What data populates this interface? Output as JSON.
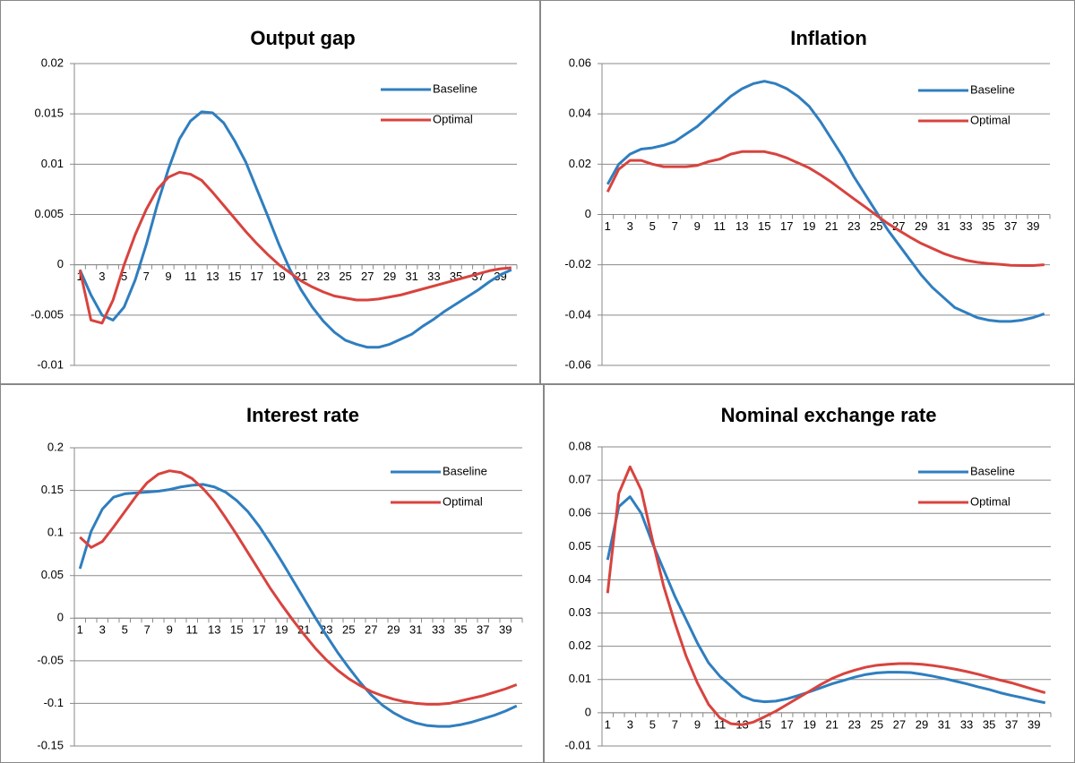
{
  "chart_data": [
    {
      "type": "line",
      "title": "Output gap",
      "categories": [
        1,
        null,
        3,
        null,
        5,
        null,
        7,
        null,
        9,
        null,
        11,
        null,
        13,
        null,
        15,
        null,
        17,
        null,
        19,
        null,
        21,
        null,
        23,
        null,
        25,
        null,
        27,
        null,
        29,
        null,
        31,
        null,
        33,
        null,
        35,
        null,
        37,
        null,
        39,
        null
      ],
      "series": [
        {
          "name": "Baseline",
          "color": "#2f7ebf",
          "values": [
            -0.0005,
            -0.003,
            -0.005,
            -0.0055,
            -0.0042,
            -0.0015,
            0.002,
            0.006,
            0.0095,
            0.0125,
            0.0143,
            0.0152,
            0.0151,
            0.0141,
            0.0123,
            0.0102,
            0.0075,
            0.0048,
            0.002,
            -0.0005,
            -0.0025,
            -0.0042,
            -0.0056,
            -0.0067,
            -0.0075,
            -0.0079,
            -0.0082,
            -0.0082,
            -0.0079,
            -0.0074,
            -0.0069,
            -0.0061,
            -0.0054,
            -0.0046,
            -0.0039,
            -0.0032,
            -0.0025,
            -0.0017,
            -0.001,
            -0.0005
          ]
        },
        {
          "name": "Optimal",
          "color": "#d8433e",
          "values": [
            -0.0005,
            -0.0055,
            -0.0058,
            -0.0035,
            0,
            0.003,
            0.0055,
            0.0075,
            0.0087,
            0.0092,
            0.009,
            0.0084,
            0.0072,
            0.0059,
            0.0046,
            0.0033,
            0.0021,
            0.001,
            0,
            -0.0008,
            -0.0016,
            -0.0022,
            -0.0027,
            -0.0031,
            -0.0033,
            -0.0035,
            -0.0035,
            -0.0034,
            -0.0032,
            -0.003,
            -0.0027,
            -0.0024,
            -0.0021,
            -0.0018,
            -0.0015,
            -0.0012,
            -0.0009,
            -0.0006,
            -0.0004,
            -0.0003
          ]
        }
      ],
      "ylim": [
        -0.01,
        0.02
      ],
      "yticks": [
        -0.01,
        -0.005,
        0,
        0.005,
        0.01,
        0.015,
        0.02
      ],
      "grid": true,
      "legend": "upper right"
    },
    {
      "type": "line",
      "title": "Inflation",
      "categories": [
        1,
        null,
        3,
        null,
        5,
        null,
        7,
        null,
        9,
        null,
        11,
        null,
        13,
        null,
        15,
        null,
        17,
        null,
        19,
        null,
        21,
        null,
        23,
        null,
        25,
        null,
        27,
        null,
        29,
        null,
        31,
        null,
        33,
        null,
        35,
        null,
        37,
        null,
        39,
        null
      ],
      "series": [
        {
          "name": "Baseline",
          "color": "#2f7ebf",
          "values": [
            0.012,
            0.02,
            0.024,
            0.026,
            0.0265,
            0.0275,
            0.029,
            0.032,
            0.035,
            0.039,
            0.043,
            0.047,
            0.05,
            0.052,
            0.053,
            0.052,
            0.05,
            0.047,
            0.043,
            0.037,
            0.03,
            0.023,
            0.015,
            0.008,
            0.001,
            -0.006,
            -0.012,
            -0.018,
            -0.024,
            -0.029,
            -0.033,
            -0.037,
            -0.039,
            -0.041,
            -0.042,
            -0.0425,
            -0.0425,
            -0.042,
            -0.041,
            -0.0395
          ]
        },
        {
          "name": "Optimal",
          "color": "#d8433e",
          "values": [
            0.009,
            0.018,
            0.0215,
            0.0215,
            0.02,
            0.019,
            0.019,
            0.019,
            0.0195,
            0.021,
            0.022,
            0.024,
            0.025,
            0.025,
            0.025,
            0.024,
            0.0225,
            0.0205,
            0.0185,
            0.0158,
            0.0128,
            0.0095,
            0.0062,
            0.003,
            -0.0003,
            -0.0035,
            -0.0063,
            -0.009,
            -0.0115,
            -0.0135,
            -0.0155,
            -0.017,
            -0.0182,
            -0.019,
            -0.0195,
            -0.0198,
            -0.0202,
            -0.0203,
            -0.0203,
            -0.02
          ]
        }
      ],
      "ylim": [
        -0.06,
        0.06
      ],
      "yticks": [
        -0.06,
        -0.04,
        -0.02,
        0,
        0.02,
        0.04,
        0.06
      ],
      "grid": true,
      "legend": "upper right"
    },
    {
      "type": "line",
      "title": "Interest rate",
      "categories": [
        1,
        null,
        3,
        null,
        5,
        null,
        7,
        null,
        9,
        null,
        11,
        null,
        13,
        null,
        15,
        null,
        17,
        null,
        19,
        null,
        21,
        null,
        23,
        null,
        25,
        null,
        27,
        null,
        29,
        null,
        31,
        null,
        33,
        null,
        35,
        null,
        37,
        null,
        39,
        null
      ],
      "series": [
        {
          "name": "Baseline",
          "color": "#2f7ebf",
          "values": [
            0.058,
            0.102,
            0.128,
            0.142,
            0.146,
            0.147,
            0.148,
            0.149,
            0.151,
            0.154,
            0.156,
            0.157,
            0.154,
            0.148,
            0.138,
            0.125,
            0.108,
            0.088,
            0.067,
            0.045,
            0.023,
            0.001,
            -0.02,
            -0.04,
            -0.058,
            -0.075,
            -0.09,
            -0.102,
            -0.111,
            -0.118,
            -0.123,
            -0.126,
            -0.127,
            -0.127,
            -0.125,
            -0.122,
            -0.118,
            -0.114,
            -0.109,
            -0.103
          ]
        },
        {
          "name": "Optimal",
          "color": "#d8433e",
          "values": [
            0.095,
            0.083,
            0.09,
            0.107,
            0.125,
            0.143,
            0.159,
            0.169,
            0.173,
            0.171,
            0.164,
            0.152,
            0.137,
            0.118,
            0.098,
            0.077,
            0.056,
            0.035,
            0.016,
            -0.002,
            -0.019,
            -0.035,
            -0.049,
            -0.061,
            -0.071,
            -0.079,
            -0.086,
            -0.091,
            -0.095,
            -0.098,
            -0.1,
            -0.101,
            -0.101,
            -0.1,
            -0.097,
            -0.094,
            -0.091,
            -0.087,
            -0.083,
            -0.078
          ]
        }
      ],
      "ylim": [
        -0.15,
        0.2
      ],
      "yticks": [
        -0.15,
        -0.1,
        -0.05,
        0,
        0.05,
        0.1,
        0.15,
        0.2
      ],
      "grid": true,
      "legend": "upper right"
    },
    {
      "type": "line",
      "title": "Nominal exchange rate",
      "categories": [
        1,
        null,
        3,
        null,
        5,
        null,
        7,
        null,
        9,
        null,
        11,
        null,
        13,
        null,
        15,
        null,
        17,
        null,
        19,
        null,
        21,
        null,
        23,
        null,
        25,
        null,
        27,
        null,
        29,
        null,
        31,
        null,
        33,
        null,
        35,
        null,
        37,
        null,
        39,
        null
      ],
      "series": [
        {
          "name": "Baseline",
          "color": "#2f7ebf",
          "values": [
            0.046,
            0.062,
            0.065,
            0.06,
            0.051,
            0.043,
            0.035,
            0.028,
            0.021,
            0.015,
            0.011,
            0.008,
            0.005,
            0.0037,
            0.0033,
            0.0035,
            0.0042,
            0.0052,
            0.0063,
            0.0075,
            0.0087,
            0.0097,
            0.0107,
            0.0115,
            0.012,
            0.0122,
            0.0122,
            0.0121,
            0.0116,
            0.011,
            0.0103,
            0.0095,
            0.0087,
            0.0078,
            0.007,
            0.006,
            0.0052,
            0.0045,
            0.0037,
            0.003
          ]
        },
        {
          "name": "Optimal",
          "color": "#d8433e",
          "values": [
            0.036,
            0.066,
            0.074,
            0.067,
            0.052,
            0.038,
            0.027,
            0.017,
            0.009,
            0.0025,
            -0.0015,
            -0.0033,
            -0.0036,
            -0.0028,
            -0.0012,
            0.0005,
            0.0025,
            0.0045,
            0.0065,
            0.0085,
            0.0103,
            0.0117,
            0.0128,
            0.0137,
            0.0143,
            0.0146,
            0.0148,
            0.0148,
            0.0146,
            0.0142,
            0.0137,
            0.0131,
            0.0124,
            0.0116,
            0.0107,
            0.0098,
            0.009,
            0.008,
            0.007,
            0.006
          ]
        }
      ],
      "ylim": [
        -0.01,
        0.08
      ],
      "yticks": [
        -0.01,
        0,
        0.01,
        0.02,
        0.03,
        0.04,
        0.05,
        0.06,
        0.07,
        0.08
      ],
      "grid": true,
      "legend": "upper right"
    }
  ]
}
